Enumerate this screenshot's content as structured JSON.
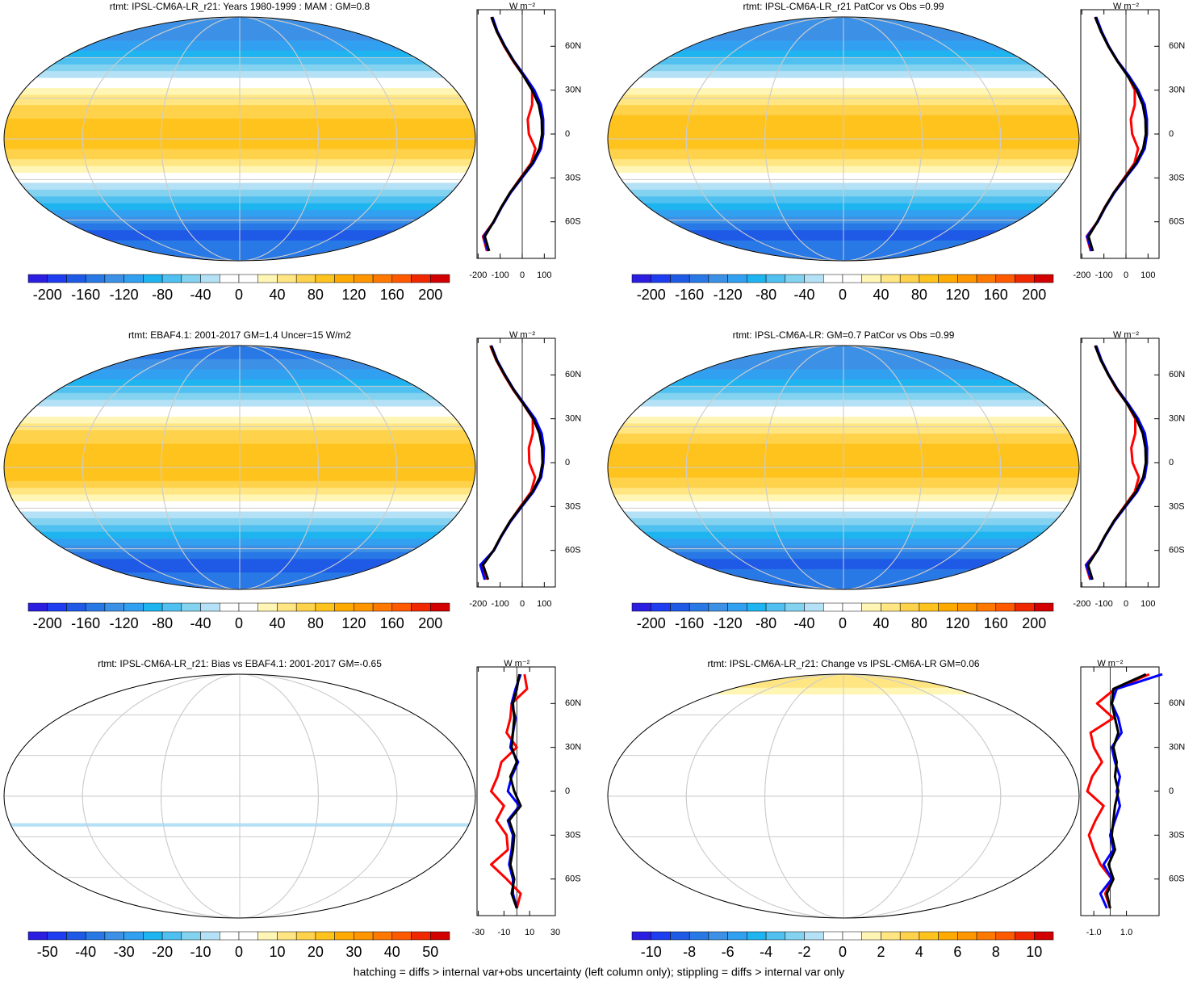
{
  "palette": [
    "#2b1ee0",
    "#1e3cf0",
    "#1e5ae6",
    "#2878e6",
    "#3c91e6",
    "#32a0f0",
    "#1eb4f0",
    "#50c0f0",
    "#82d2f0",
    "#b4e1f5",
    "#ffffff",
    "#ffffff",
    "#fff5b4",
    "#ffe682",
    "#ffd24b",
    "#ffc31e",
    "#ffaa00",
    "#ff9600",
    "#ff7800",
    "#ff5a00",
    "#f02800",
    "#d20000"
  ],
  "footer": "hatching = diffs > internal var+obs uncertainty (left column only); stippling = diffs > internal var only",
  "chart_data": [
    {
      "type": "map",
      "title": "rtmt: IPSL-CM6A-LR_r21: Years 1980-1999 : MAM : GM=0.8",
      "clim": [
        -220,
        220
      ],
      "cticks": [
        -200,
        -160,
        -120,
        -80,
        -40,
        0,
        40,
        80,
        120,
        160,
        200
      ],
      "unit": "W m⁻²",
      "xlim": [
        -205,
        150
      ],
      "xticks": [
        -200,
        -100,
        0,
        100
      ],
      "ylim": [
        -85,
        85
      ],
      "yticks": [
        {
          "value": 60,
          "label": "60N"
        },
        {
          "value": 30,
          "label": "30N"
        },
        0,
        {
          "value": -30,
          "label": "30S"
        },
        {
          "value": -60,
          "label": "60S"
        }
      ],
      "lat": [
        80,
        70,
        60,
        50,
        40,
        30,
        20,
        10,
        0,
        -10,
        -20,
        -30,
        -40,
        -50,
        -60,
        -70,
        -80
      ],
      "series": [
        {
          "color": "#ff0000",
          "values": [
            -140,
            -115,
            -82,
            -42,
            5,
            45,
            45,
            25,
            30,
            60,
            40,
            -8,
            -55,
            -95,
            -130,
            -178,
            -160
          ]
        },
        {
          "color": "#0000ff",
          "values": [
            -135,
            -112,
            -78,
            -38,
            10,
            55,
            85,
            95,
            95,
            85,
            50,
            -2,
            -52,
            -93,
            -128,
            -175,
            -155
          ]
        },
        {
          "color": "#000000",
          "values": [
            -140,
            -115,
            -80,
            -40,
            5,
            45,
            75,
            88,
            90,
            78,
            45,
            -5,
            -55,
            -95,
            -130,
            -170,
            -150
          ]
        }
      ]
    },
    {
      "type": "map",
      "title": "rtmt: IPSL-CM6A-LR_r21 PatCor vs Obs =0.99",
      "clim": [
        -220,
        220
      ],
      "cticks": [
        -200,
        -160,
        -120,
        -80,
        -40,
        0,
        40,
        80,
        120,
        160,
        200
      ],
      "unit": "W m⁻²",
      "xlim": [
        -205,
        150
      ],
      "xticks": [
        -200,
        -100,
        0,
        100
      ],
      "ylim": [
        -85,
        85
      ],
      "yticks": [
        {
          "value": 60,
          "label": "60N"
        },
        {
          "value": 30,
          "label": "30N"
        },
        0,
        {
          "value": -30,
          "label": "30S"
        },
        {
          "value": -60,
          "label": "60S"
        }
      ],
      "lat": [
        80,
        70,
        60,
        50,
        40,
        30,
        20,
        10,
        0,
        -10,
        -20,
        -30,
        -40,
        -50,
        -60,
        -70,
        -80
      ],
      "series": [
        {
          "color": "#ff0000",
          "values": [
            -140,
            -112,
            -80,
            -40,
            8,
            40,
            40,
            22,
            28,
            55,
            38,
            -8,
            -55,
            -96,
            -130,
            -178,
            -160
          ]
        },
        {
          "color": "#0000ff",
          "values": [
            -135,
            -110,
            -78,
            -38,
            12,
            55,
            85,
            95,
            95,
            85,
            50,
            -2,
            -52,
            -93,
            -128,
            -176,
            -156
          ]
        },
        {
          "color": "#000000",
          "values": [
            -140,
            -113,
            -80,
            -40,
            6,
            48,
            76,
            88,
            90,
            78,
            45,
            -5,
            -55,
            -95,
            -130,
            -170,
            -150
          ]
        }
      ]
    },
    {
      "type": "map",
      "title": "rtmt: EBAF4.1: 2001-2017 GM=1.4 Uncer=15 W/m2",
      "clim": [
        -220,
        220
      ],
      "cticks": [
        -200,
        -160,
        -120,
        -80,
        -40,
        0,
        40,
        80,
        120,
        160,
        200
      ],
      "unit": "W m⁻²",
      "xlim": [
        -205,
        150
      ],
      "xticks": [
        -200,
        -100,
        0,
        100
      ],
      "ylim": [
        -85,
        85
      ],
      "yticks": [
        {
          "value": 60,
          "label": "60N"
        },
        {
          "value": 30,
          "label": "30N"
        },
        0,
        {
          "value": -30,
          "label": "30S"
        },
        {
          "value": -60,
          "label": "60S"
        }
      ],
      "lat": [
        80,
        70,
        60,
        50,
        40,
        30,
        20,
        10,
        0,
        -10,
        -20,
        -30,
        -40,
        -50,
        -60,
        -70,
        -80
      ],
      "series": [
        {
          "color": "#ff0000",
          "values": [
            -145,
            -118,
            -82,
            -42,
            5,
            48,
            48,
            30,
            32,
            58,
            40,
            -8,
            -55,
            -95,
            -130,
            -185,
            -165
          ]
        },
        {
          "color": "#0000ff",
          "values": [
            -140,
            -114,
            -78,
            -38,
            10,
            58,
            88,
            98,
            96,
            86,
            50,
            -2,
            -52,
            -93,
            -128,
            -190,
            -170
          ]
        },
        {
          "color": "#000000",
          "values": [
            -142,
            -116,
            -80,
            -40,
            6,
            50,
            78,
            90,
            92,
            80,
            46,
            -5,
            -55,
            -95,
            -130,
            -178,
            -155
          ]
        }
      ]
    },
    {
      "type": "map",
      "title": "rtmt: IPSL-CM6A-LR: GM=0.7 PatCor vs Obs =0.99",
      "clim": [
        -220,
        220
      ],
      "cticks": [
        -200,
        -160,
        -120,
        -80,
        -40,
        0,
        40,
        80,
        120,
        160,
        200
      ],
      "unit": "W m⁻²",
      "xlim": [
        -205,
        150
      ],
      "xticks": [
        -200,
        -100,
        0,
        100
      ],
      "ylim": [
        -85,
        85
      ],
      "yticks": [
        {
          "value": 60,
          "label": "60N"
        },
        {
          "value": 30,
          "label": "30N"
        },
        0,
        {
          "value": -30,
          "label": "30S"
        },
        {
          "value": -60,
          "label": "60S"
        }
      ],
      "lat": [
        80,
        70,
        60,
        50,
        40,
        30,
        20,
        10,
        0,
        -10,
        -20,
        -30,
        -40,
        -50,
        -60,
        -70,
        -80
      ],
      "series": [
        {
          "color": "#ff0000",
          "values": [
            -140,
            -114,
            -80,
            -42,
            6,
            42,
            42,
            24,
            30,
            58,
            40,
            -8,
            -55,
            -95,
            -130,
            -182,
            -162
          ]
        },
        {
          "color": "#0000ff",
          "values": [
            -135,
            -111,
            -78,
            -38,
            11,
            55,
            86,
            96,
            95,
            85,
            50,
            -2,
            -52,
            -93,
            -128,
            -180,
            -158
          ]
        },
        {
          "color": "#000000",
          "values": [
            -140,
            -114,
            -80,
            -40,
            6,
            47,
            76,
            88,
            90,
            78,
            45,
            -5,
            -55,
            -95,
            -130,
            -172,
            -152
          ]
        }
      ]
    },
    {
      "type": "map",
      "title": "rtmt: IPSL-CM6A-LR_r21: Bias vs EBAF4.1: 2001-2017 GM=-0.65",
      "clim": [
        -55,
        55
      ],
      "cticks": [
        -50,
        -40,
        -30,
        -20,
        -10,
        0,
        10,
        20,
        30,
        40,
        50
      ],
      "unit": "W m⁻²",
      "xlim": [
        -31,
        30
      ],
      "xticks": [
        -30,
        -10,
        10,
        30
      ],
      "ylim": [
        -85,
        85
      ],
      "yticks": [
        {
          "value": 60,
          "label": "60N"
        },
        {
          "value": 30,
          "label": "30N"
        },
        0,
        {
          "value": -30,
          "label": "30S"
        },
        {
          "value": -60,
          "label": "60S"
        }
      ],
      "lat": [
        80,
        70,
        60,
        50,
        40,
        30,
        20,
        10,
        0,
        -10,
        -20,
        -30,
        -40,
        -50,
        -60,
        -70,
        -80
      ],
      "series": [
        {
          "color": "#ff0000",
          "values": [
            6,
            8,
            -4,
            -5,
            -8,
            0,
            -12,
            -15,
            -20,
            -10,
            -16,
            -8,
            -7,
            -20,
            -8,
            3,
            0
          ]
        },
        {
          "color": "#0000ff",
          "values": [
            3,
            -1,
            -4,
            -1,
            -3,
            -5,
            1,
            -4,
            -7,
            2,
            -7,
            -3,
            -4,
            -6,
            -3,
            -3,
            0
          ]
        },
        {
          "color": "#000000",
          "values": [
            2,
            0,
            -3,
            -2,
            -3,
            -4,
            0,
            -5,
            -2,
            3,
            -6,
            -2,
            -3,
            -5,
            -2,
            -4,
            0
          ]
        }
      ]
    },
    {
      "type": "map",
      "title": "rtmt: IPSL-CM6A-LR_r21: Change vs IPSL-CM6A-LR GM=0.06",
      "clim": [
        -11,
        11
      ],
      "cticks": [
        -10,
        -8,
        -6,
        -4,
        -2,
        0,
        2,
        4,
        6,
        8,
        10
      ],
      "unit": "W m⁻²",
      "xlim": [
        -1.8,
        3.0
      ],
      "xticks": [
        {
          "value": -1,
          "label": "-1.0"
        },
        {
          "value": 1,
          "label": "1.0"
        }
      ],
      "ylim": [
        -85,
        85
      ],
      "yticks": [
        {
          "value": 60,
          "label": "60N"
        },
        {
          "value": 30,
          "label": "30N"
        },
        0,
        {
          "value": -30,
          "label": "30S"
        },
        {
          "value": -60,
          "label": "60S"
        }
      ],
      "lat": [
        80,
        70,
        60,
        50,
        40,
        30,
        20,
        10,
        0,
        -10,
        -20,
        -30,
        -40,
        -50,
        -60,
        -70,
        -80
      ],
      "series": [
        {
          "color": "#ff0000",
          "values": [
            2.4,
            0.3,
            -0.8,
            0.2,
            -1.2,
            -1.0,
            -0.5,
            -1.1,
            -1.4,
            -0.4,
            -0.9,
            -1.3,
            -1.0,
            -0.6,
            0.1,
            -0.3,
            0.0
          ]
        },
        {
          "color": "#0000ff",
          "values": [
            3.2,
            0.4,
            0.1,
            0.5,
            0.7,
            0.1,
            0.3,
            0.6,
            0.4,
            0.6,
            0.3,
            0.0,
            0.2,
            -0.4,
            0.1,
            -0.6,
            -0.2
          ]
        },
        {
          "color": "#000000",
          "values": [
            2.2,
            0.2,
            0.1,
            0.3,
            0.5,
            0.2,
            0.4,
            0.3,
            0.5,
            0.3,
            0.2,
            0.1,
            0.3,
            -0.1,
            0.2,
            -0.2,
            0.0
          ]
        }
      ]
    }
  ]
}
